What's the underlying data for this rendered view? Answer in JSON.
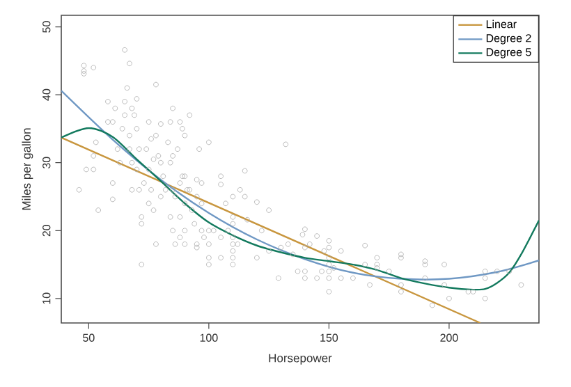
{
  "chart_data": {
    "type": "scatter",
    "xlabel": "Horsepower",
    "ylabel": "Miles per gallon",
    "xlim": [
      38.6,
      237.4
    ],
    "ylim": [
      6.4,
      51.7
    ],
    "xticks": [
      50,
      100,
      150,
      200
    ],
    "yticks": [
      10,
      20,
      30,
      40,
      50
    ],
    "grid": false,
    "legend": "top right",
    "series": [
      {
        "marker": "circle",
        "color": "#aaaaaa",
        "x": [
          46,
          48,
          48,
          48,
          52,
          49,
          52,
          52,
          53,
          54,
          58,
          58,
          60,
          60,
          60,
          61,
          62,
          63,
          64,
          65,
          65,
          65,
          66,
          67,
          67,
          67,
          68,
          68,
          68,
          69,
          70,
          70,
          70,
          71,
          71,
          72,
          72,
          72,
          73,
          74,
          75,
          75,
          75,
          76,
          76,
          77,
          77,
          78,
          78,
          78,
          79,
          80,
          80,
          80,
          81,
          82,
          83,
          84,
          84,
          84,
          85,
          85,
          85,
          85,
          86,
          86,
          87,
          88,
          88,
          88,
          88,
          89,
          89,
          90,
          90,
          90,
          90,
          90,
          91,
          92,
          92,
          93,
          94,
          95,
          95,
          95,
          95,
          96,
          97,
          97,
          97,
          98,
          100,
          100,
          100,
          100,
          100,
          102,
          105,
          105,
          105,
          105,
          107,
          108,
          110,
          110,
          110,
          110,
          110,
          110,
          110,
          110,
          112,
          113,
          115,
          115,
          116,
          120,
          120,
          122,
          125,
          125,
          129,
          130,
          132,
          133,
          135,
          137,
          139,
          140,
          140,
          140,
          140,
          142,
          145,
          145,
          147,
          148,
          150,
          150,
          150,
          150,
          150,
          150,
          150,
          152,
          155,
          155,
          160,
          165,
          165,
          167,
          170,
          170,
          170,
          175,
          180,
          180,
          180,
          180,
          190,
          190,
          190,
          193,
          198,
          198,
          200,
          208,
          210,
          215,
          215,
          215,
          220,
          225,
          230
        ],
        "values": [
          26,
          43.5,
          44.3,
          43.1,
          44,
          29,
          29,
          31,
          33,
          23,
          39,
          36,
          27,
          24.6,
          36,
          38,
          32,
          30,
          35,
          39,
          46.6,
          37,
          41,
          44.6,
          34,
          32,
          38,
          30,
          26,
          37,
          29,
          35,
          39.4,
          32,
          26,
          22,
          15,
          21,
          27,
          32,
          36,
          29,
          24,
          33.5,
          26,
          23,
          30.5,
          41.5,
          34,
          18,
          31,
          25,
          30,
          35.7,
          28,
          26,
          33,
          36,
          30,
          22,
          38,
          31,
          26,
          20,
          18,
          25,
          32,
          27,
          22,
          19,
          36,
          28,
          35,
          34,
          28,
          24,
          20,
          18,
          26,
          37,
          26,
          23,
          21,
          27.5,
          25,
          18,
          17.5,
          32,
          27,
          24,
          20,
          19,
          20,
          18,
          16,
          15,
          33,
          20,
          28,
          26.8,
          19,
          16,
          24,
          20,
          25,
          22,
          21,
          19,
          18,
          17,
          16,
          15,
          18,
          26,
          28.8,
          25,
          21.6,
          24.2,
          16,
          20,
          23,
          17,
          13,
          17.5,
          32.7,
          18,
          16.5,
          14,
          19.4,
          20.2,
          17.5,
          14,
          13,
          18,
          19.2,
          13,
          14,
          17,
          18.5,
          17.5,
          16,
          15,
          14,
          13,
          11,
          14.5,
          17,
          13,
          13,
          17.8,
          15,
          12,
          16,
          15,
          14.5,
          14,
          16.5,
          16,
          12,
          11,
          15.5,
          15,
          13,
          9,
          15,
          12,
          10,
          11,
          11,
          14,
          13,
          10,
          14,
          14,
          12
        ]
      },
      {
        "type": "line",
        "name": "Linear",
        "color": "#c8963e",
        "marker": "none",
        "x": [
          38.6,
          213
        ],
        "values": [
          33.7,
          6.4
        ]
      },
      {
        "type": "line",
        "name": "Degree 2",
        "color": "#6f98c4",
        "marker": "none",
        "x": [
          38.6,
          60,
          80,
          100,
          120,
          140,
          160,
          180,
          200,
          220,
          237.4
        ],
        "values": [
          40.6,
          33.4,
          27.5,
          22.6,
          18.7,
          15.8,
          13.8,
          12.9,
          12.9,
          13.9,
          15.6
        ]
      },
      {
        "type": "line",
        "name": "Degree 5",
        "color": "#137a5e",
        "marker": "none",
        "x": [
          38.6,
          50,
          60,
          70,
          80,
          90,
          100,
          110,
          120,
          130,
          140,
          150,
          160,
          170,
          180,
          190,
          200,
          210,
          215,
          220,
          225,
          230,
          237.4
        ],
        "values": [
          33.7,
          35.1,
          33.8,
          30.5,
          27.3,
          24.0,
          21.2,
          19.3,
          17.8,
          16.8,
          16.0,
          15.5,
          15.0,
          14.2,
          13.0,
          12.2,
          11.6,
          11.3,
          11.4,
          12.3,
          13.8,
          16.5,
          21.5
        ]
      }
    ]
  }
}
